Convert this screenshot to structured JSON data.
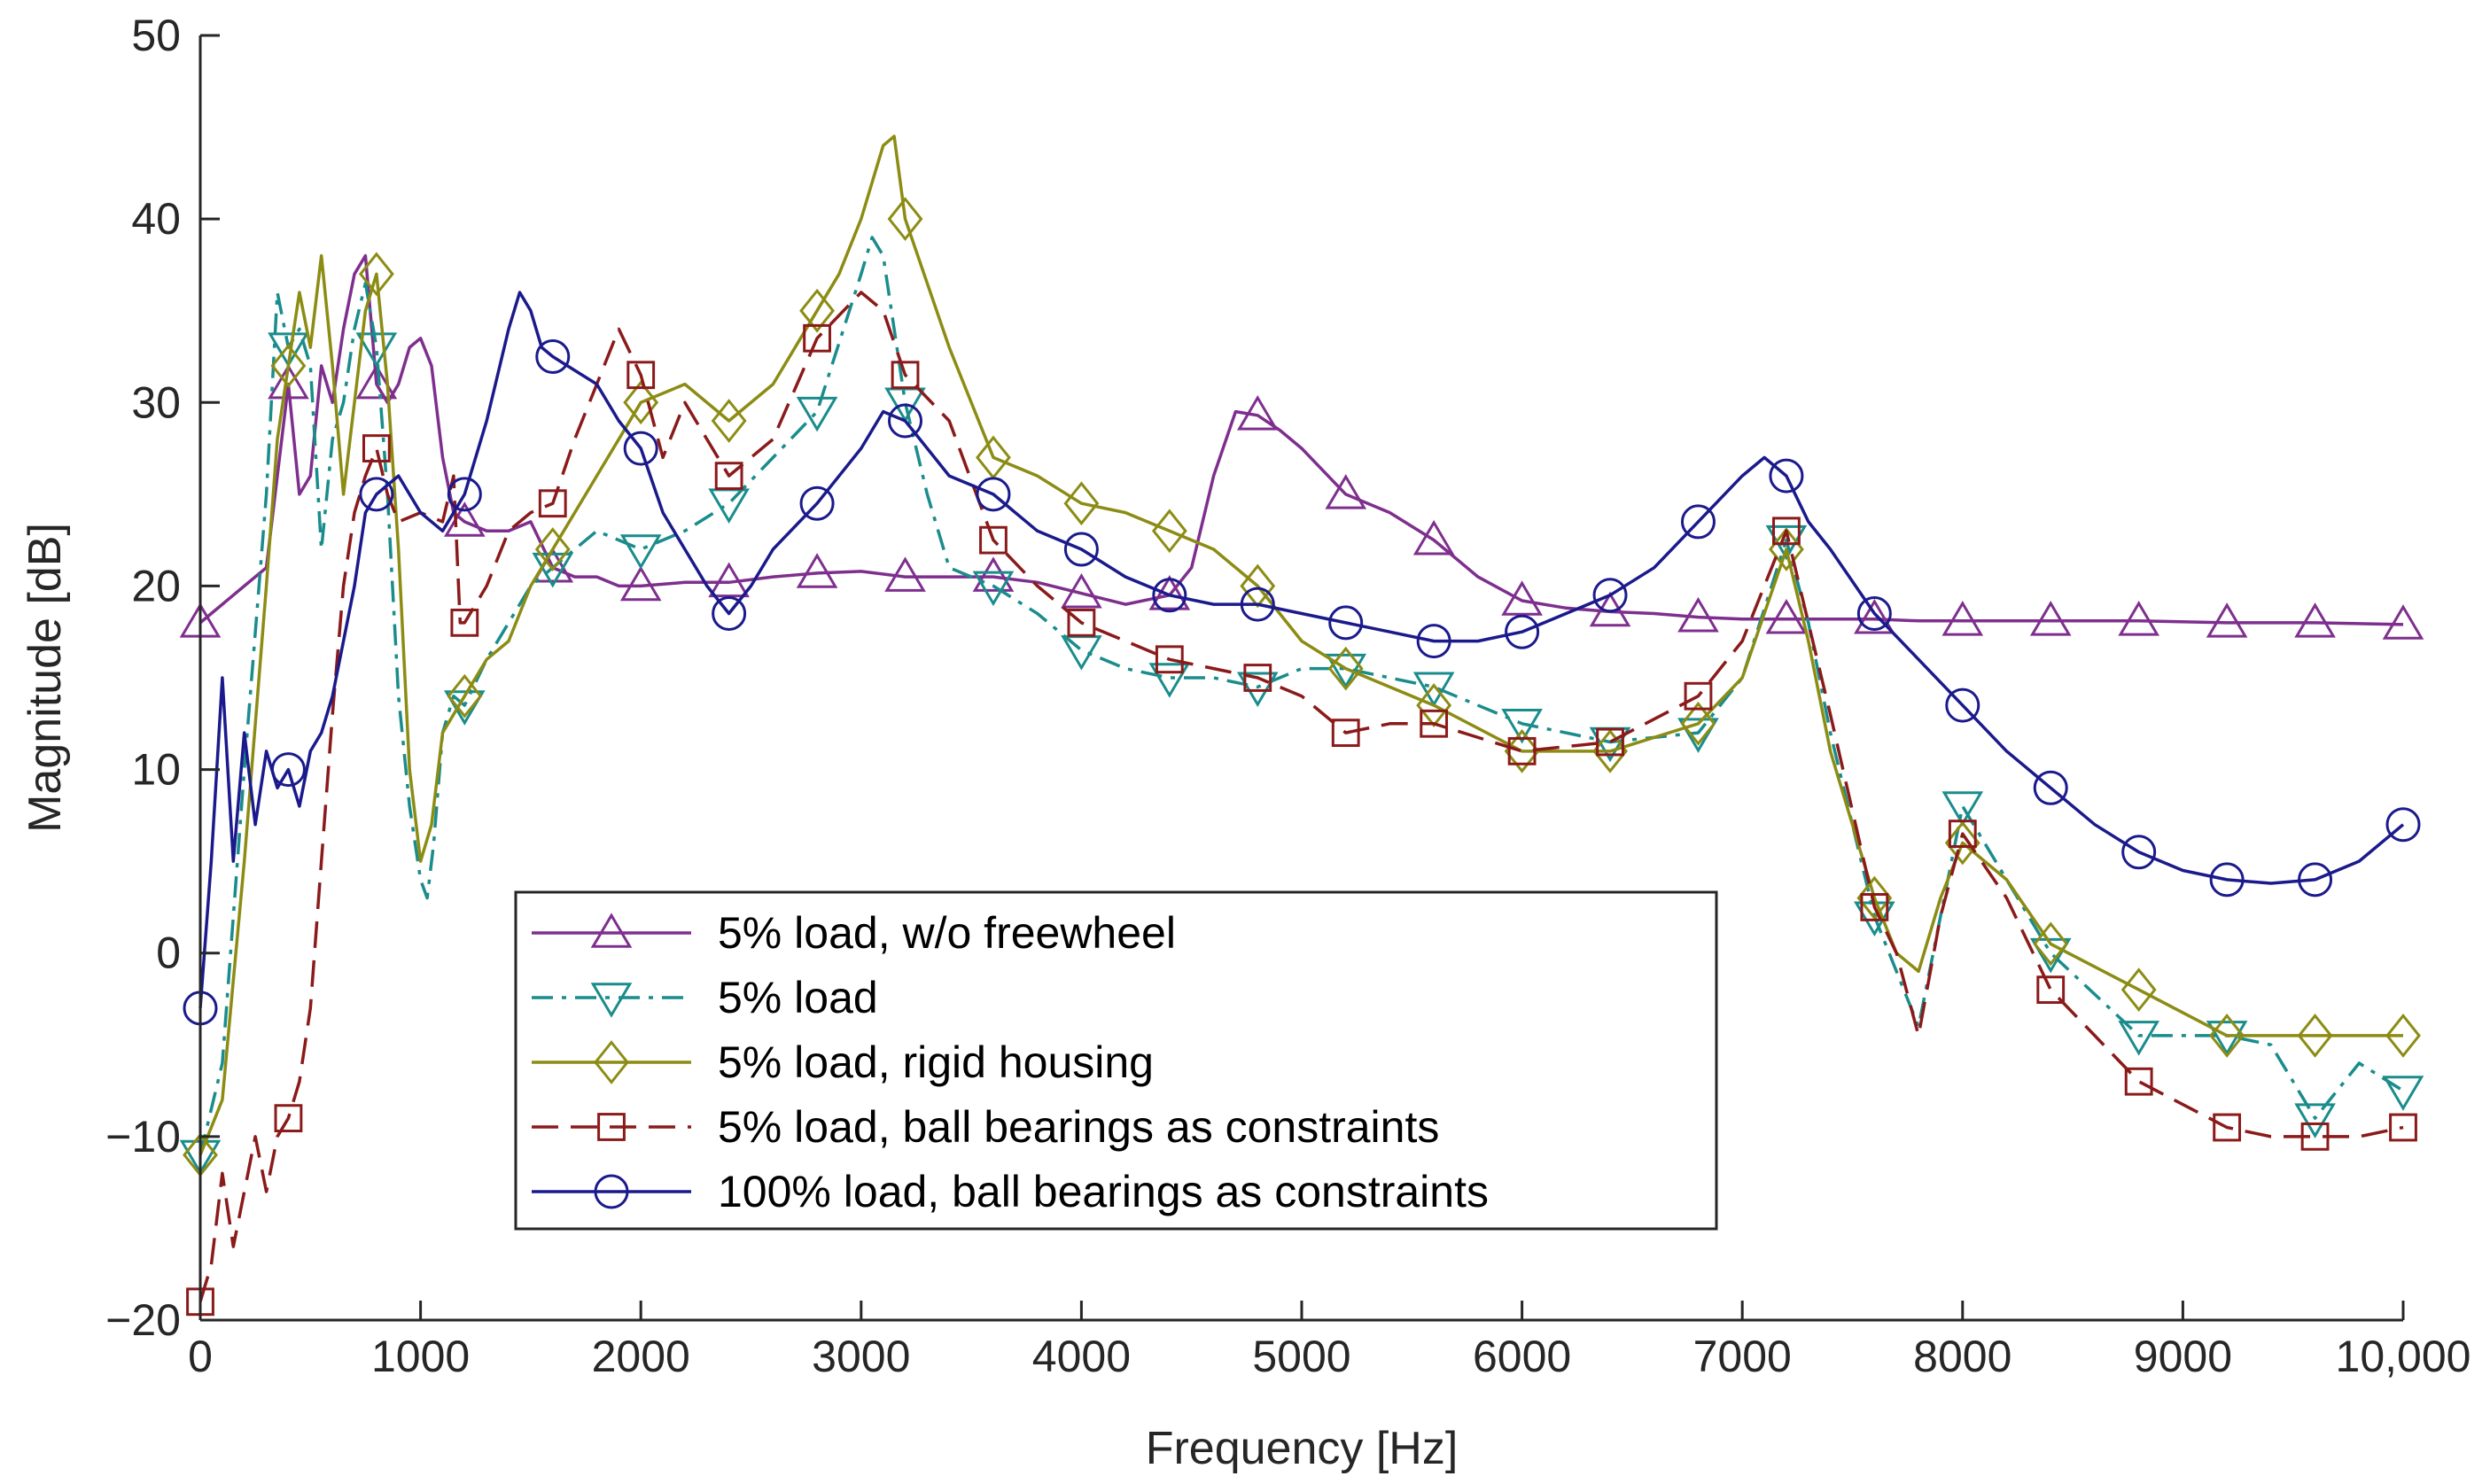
{
  "chart_data": {
    "type": "line",
    "title": "",
    "xlabel": "Frequency [Hz]",
    "ylabel": "Magnitude [dB]",
    "xlim": [
      0,
      10000
    ],
    "ylim": [
      -20,
      50
    ],
    "xticks": [
      0,
      1000,
      2000,
      3000,
      4000,
      5000,
      6000,
      7000,
      8000,
      9000,
      10000
    ],
    "xtick_labels": [
      "0",
      "1000",
      "2000",
      "3000",
      "4000",
      "5000",
      "6000",
      "7000",
      "8000",
      "9000",
      "10,000"
    ],
    "yticks": [
      -20,
      -10,
      0,
      10,
      20,
      30,
      40,
      50
    ],
    "ytick_labels": [
      "−20",
      "−10",
      "0",
      "10",
      "20",
      "30",
      "40",
      "50"
    ],
    "grid": false,
    "legend_position": "bottom-center",
    "series": [
      {
        "name": "5% load, w/o freewheel",
        "color": "#7E2F8E",
        "dash": "solid",
        "marker": "triangle-up",
        "x": [
          0,
          100,
          200,
          300,
          350,
          400,
          450,
          500,
          550,
          600,
          650,
          700,
          750,
          800,
          850,
          900,
          950,
          1000,
          1050,
          1100,
          1150,
          1200,
          1300,
          1400,
          1500,
          1600,
          1700,
          1800,
          1900,
          2000,
          2200,
          2400,
          2600,
          2800,
          3000,
          3200,
          3400,
          3600,
          3800,
          4000,
          4200,
          4400,
          4500,
          4600,
          4700,
          4800,
          4900,
          5000,
          5200,
          5400,
          5600,
          5800,
          6000,
          6200,
          6400,
          6600,
          6800,
          7000,
          7200,
          7400,
          7600,
          7800,
          8000,
          8400,
          8800,
          9200,
          9600,
          10000
        ],
        "y": [
          18,
          19,
          20,
          21,
          26,
          31,
          25,
          26,
          32,
          30,
          34,
          37,
          38,
          31,
          30,
          31,
          33,
          33.5,
          32,
          27,
          24,
          23.5,
          23,
          23,
          23.5,
          21,
          20.5,
          20.5,
          20,
          20,
          20.2,
          20.2,
          20.5,
          20.7,
          20.8,
          20.5,
          20.5,
          20.5,
          20.2,
          19.6,
          19,
          19.5,
          21,
          26,
          29.5,
          29.3,
          28.5,
          27.5,
          25,
          24,
          22.5,
          20.5,
          19.2,
          18.8,
          18.6,
          18.5,
          18.3,
          18.2,
          18.2,
          18.2,
          18.2,
          18.1,
          18.1,
          18.1,
          18.1,
          18,
          18,
          17.9
        ],
        "markers_x": [
          0,
          400,
          800,
          1200,
          1600,
          2000,
          2400,
          2800,
          3200,
          3600,
          4000,
          4400,
          4800,
          5200,
          5600,
          6000,
          6400,
          6800,
          7200,
          7600,
          8000,
          8400,
          8800,
          9200,
          9600,
          10000
        ]
      },
      {
        "name": "5% load",
        "color": "#1A8C8C",
        "dash": "dashdot",
        "marker": "triangle-down",
        "x": [
          0,
          100,
          200,
          300,
          350,
          400,
          450,
          500,
          550,
          600,
          650,
          700,
          750,
          800,
          850,
          900,
          950,
          1000,
          1030,
          1060,
          1100,
          1150,
          1200,
          1300,
          1400,
          1500,
          1600,
          1800,
          2000,
          2200,
          2400,
          2600,
          2800,
          3000,
          3050,
          3100,
          3200,
          3300,
          3400,
          3600,
          3800,
          4000,
          4200,
          4400,
          4600,
          4800,
          5000,
          5200,
          5400,
          5600,
          6000,
          6400,
          6800,
          7000,
          7200,
          7300,
          7400,
          7600,
          7700,
          7800,
          7900,
          8000,
          8200,
          8400,
          8800,
          9200,
          9400,
          9600,
          9800,
          10000
        ],
        "y": [
          -11,
          -6,
          10,
          25,
          36,
          33,
          34,
          32,
          22,
          28,
          30,
          34,
          36.5,
          33,
          25,
          14,
          8,
          4,
          3,
          6,
          12,
          14,
          13.5,
          16,
          18,
          20,
          21,
          23,
          22,
          23,
          24.5,
          27,
          29.5,
          37,
          39,
          38,
          30,
          25,
          21,
          20,
          18.5,
          16.5,
          15.5,
          15,
          15,
          14.5,
          15.5,
          15.5,
          15,
          14.5,
          12.5,
          11.5,
          12,
          15,
          22.5,
          18,
          12,
          2,
          -1,
          -4,
          2,
          8,
          4,
          0,
          -4.5,
          -4.5,
          -5,
          -9,
          -6,
          -7.5
        ],
        "markers_x": [
          0,
          400,
          800,
          1200,
          1600,
          2000,
          2400,
          2800,
          3200,
          3600,
          4000,
          4400,
          4800,
          5200,
          5600,
          6000,
          6400,
          6800,
          7200,
          7600,
          8000,
          8400,
          8800,
          9200,
          9600,
          10000
        ]
      },
      {
        "name": "5% load, rigid housing",
        "color": "#8C8C14",
        "dash": "solid",
        "marker": "diamond",
        "x": [
          0,
          100,
          200,
          300,
          350,
          400,
          450,
          500,
          550,
          600,
          650,
          700,
          750,
          800,
          850,
          900,
          950,
          1000,
          1050,
          1100,
          1150,
          1200,
          1300,
          1400,
          1500,
          1600,
          1800,
          2000,
          2200,
          2400,
          2600,
          2800,
          2900,
          3000,
          3100,
          3150,
          3200,
          3400,
          3600,
          3800,
          4000,
          4200,
          4400,
          4600,
          4800,
          5000,
          5200,
          5400,
          5600,
          6000,
          6400,
          6800,
          7000,
          7200,
          7300,
          7400,
          7600,
          7700,
          7800,
          7900,
          8000,
          8200,
          8400,
          8800,
          9200,
          9600,
          10000
        ],
        "y": [
          -11,
          -8,
          5,
          20,
          28,
          32,
          36,
          33,
          38,
          32,
          25,
          30,
          35,
          37,
          31,
          22,
          10,
          5,
          7,
          12,
          13,
          14,
          16,
          17,
          20,
          22,
          26,
          30,
          31,
          29,
          31,
          35,
          37,
          40,
          44,
          44.5,
          40,
          33,
          27,
          26,
          24.5,
          24,
          23,
          22,
          20,
          17,
          15.5,
          14.5,
          13.5,
          11,
          11,
          12.5,
          15,
          22,
          17,
          11,
          3,
          0,
          -1,
          3,
          6,
          4,
          0.5,
          -2,
          -4.5,
          -4.5,
          -4.5
        ],
        "markers_x": [
          0,
          400,
          800,
          1200,
          1600,
          2000,
          2400,
          2800,
          3200,
          3600,
          4000,
          4400,
          4800,
          5200,
          5600,
          6000,
          6400,
          6800,
          7200,
          7600,
          8000,
          8400,
          8800,
          9200,
          9600,
          10000
        ]
      },
      {
        "name": "5% load, ball bearings as constraints",
        "color": "#8B1A1A",
        "dash": "dashed",
        "marker": "square",
        "x": [
          0,
          50,
          100,
          150,
          200,
          250,
          300,
          350,
          400,
          450,
          500,
          550,
          600,
          650,
          700,
          750,
          800,
          850,
          900,
          1000,
          1100,
          1150,
          1180,
          1200,
          1300,
          1400,
          1500,
          1600,
          1700,
          1800,
          1900,
          2000,
          2100,
          2200,
          2400,
          2600,
          2800,
          3000,
          3100,
          3200,
          3400,
          3600,
          3800,
          4000,
          4200,
          4400,
          4600,
          4800,
          5000,
          5200,
          5400,
          5600,
          6000,
          6400,
          6800,
          7000,
          7200,
          7400,
          7600,
          7700,
          7800,
          7900,
          8000,
          8200,
          8400,
          8800,
          9200,
          9400,
          9600,
          9800,
          10000
        ],
        "y": [
          -19,
          -17,
          -12,
          -16,
          -13,
          -10,
          -13,
          -10,
          -9,
          -7,
          -3,
          5,
          13,
          20,
          24,
          26,
          27.5,
          25,
          23.5,
          24,
          23.5,
          26,
          18,
          18,
          20,
          23,
          24,
          24.5,
          28,
          31,
          34,
          31.5,
          27,
          30,
          26,
          28,
          33.5,
          36,
          35,
          31.5,
          29,
          22.5,
          20,
          18,
          17,
          16,
          15.5,
          15,
          14,
          12,
          12.5,
          12.5,
          11,
          11.5,
          14,
          17,
          23,
          13,
          2.5,
          0,
          -4.5,
          2,
          6.5,
          3,
          -2,
          -7,
          -9.5,
          -10,
          -10,
          -10,
          -9.5
        ],
        "markers_x": [
          0,
          400,
          800,
          1200,
          1600,
          2000,
          2400,
          2800,
          3200,
          3600,
          4000,
          4400,
          4800,
          5200,
          5600,
          6000,
          6400,
          6800,
          7200,
          7600,
          8000,
          8400,
          8800,
          9200,
          9600,
          10000
        ]
      },
      {
        "name": "100% load, ball bearings as constraints",
        "color": "#1A1A8C",
        "dash": "solid",
        "marker": "circle",
        "x": [
          0,
          50,
          100,
          150,
          200,
          250,
          300,
          350,
          400,
          450,
          500,
          550,
          600,
          650,
          700,
          750,
          800,
          900,
          1000,
          1100,
          1200,
          1300,
          1400,
          1450,
          1500,
          1550,
          1600,
          1800,
          1900,
          2000,
          2100,
          2200,
          2300,
          2400,
          2500,
          2600,
          2800,
          3000,
          3100,
          3200,
          3400,
          3600,
          3800,
          4000,
          4200,
          4400,
          4600,
          4800,
          5000,
          5200,
          5400,
          5600,
          5800,
          6000,
          6200,
          6400,
          6600,
          6800,
          7000,
          7100,
          7200,
          7300,
          7400,
          7600,
          7800,
          8000,
          8200,
          8400,
          8600,
          8800,
          9000,
          9200,
          9400,
          9600,
          9800,
          10000
        ],
        "y": [
          -3,
          5,
          15,
          5,
          12,
          7,
          11,
          9,
          10,
          8,
          11,
          12,
          14,
          17,
          20,
          24,
          25,
          26,
          24,
          23,
          25,
          29,
          34,
          36,
          35,
          33,
          32.5,
          31,
          29,
          27.5,
          24,
          22,
          20,
          18.5,
          20,
          22,
          24.5,
          27.5,
          29.5,
          29,
          26,
          25,
          23,
          22,
          20.5,
          19.5,
          19,
          19,
          18.5,
          18,
          17.5,
          17,
          17,
          17.5,
          18.5,
          19.5,
          21,
          23.5,
          26,
          27,
          26,
          23.5,
          22,
          18.5,
          16,
          13.5,
          11,
          9,
          7,
          5.5,
          4.5,
          4,
          3.8,
          4,
          5,
          7
        ],
        "markers_x": [
          0,
          400,
          800,
          1200,
          1600,
          2000,
          2400,
          2800,
          3200,
          3600,
          4000,
          4400,
          4800,
          5200,
          5600,
          6000,
          6400,
          6800,
          7200,
          7600,
          8000,
          8400,
          8800,
          9200,
          9600,
          10000
        ]
      }
    ]
  }
}
